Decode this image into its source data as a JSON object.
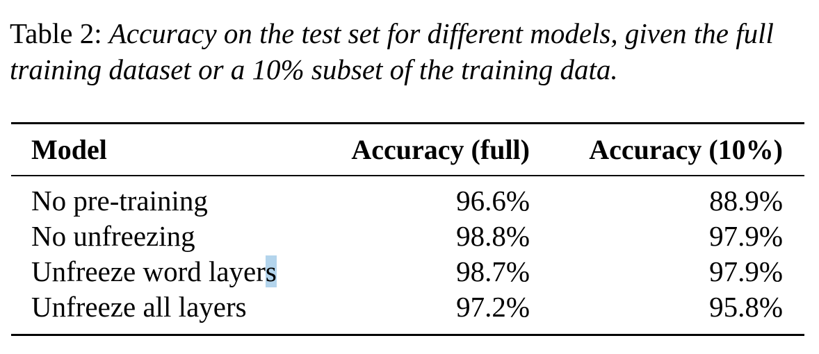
{
  "caption": {
    "label": "Table 2:",
    "text": "Accuracy on the test set for different models, given the full training dataset or a 10% subset of the training data."
  },
  "table": {
    "headers": {
      "model": "Model",
      "full": "Accuracy (full)",
      "ten": "Accuracy (10%)"
    },
    "rows": [
      {
        "model": "No pre-training",
        "full": "96.6%",
        "ten": "88.9%"
      },
      {
        "model": "No unfreezing",
        "full": "98.8%",
        "ten": "97.9%"
      },
      {
        "model_main": "Unfreeze word layer",
        "model_sel": "s",
        "full": "98.7%",
        "ten": "97.9%"
      },
      {
        "model": "Unfreeze all layers",
        "full": "97.2%",
        "ten": "95.8%"
      }
    ]
  }
}
